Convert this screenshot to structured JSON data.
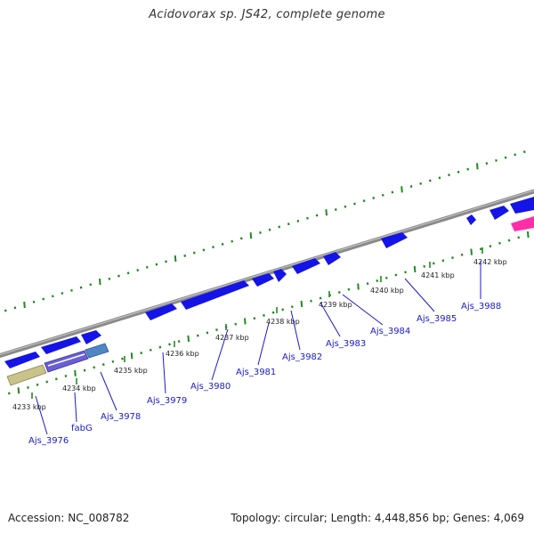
{
  "title": "Acidovorax sp. JS42, complete genome",
  "footer": {
    "accession": "Accession: NC_008782",
    "topology": "Topology: circular; Length: 4,448,856 bp; Genes: 4,069"
  },
  "kbp_labels": [
    "4233 kbp",
    "4234 kbp",
    "4235 kbp",
    "4236 kbp",
    "4237 kbp",
    "4238 kbp",
    "4239 kbp",
    "4240 kbp",
    "4241 kbp",
    "4242 kbp"
  ],
  "gene_labels": [
    "Ajs_3976",
    "fabG",
    "Ajs_3978",
    "Ajs_3979",
    "Ajs_3980",
    "Ajs_3981",
    "Ajs_3982",
    "Ajs_3983",
    "Ajs_3984",
    "Ajs_3985",
    "Ajs_3988"
  ],
  "colors": {
    "backbone": "#8a8a8a",
    "tick": "#1f8a1f",
    "gene_cds": "#1414e6",
    "gene_pink": "#ff2fa8",
    "gene_olive": "#c9c38a",
    "gene_purple": "#6a5ed6",
    "gene_steel": "#4f86c6",
    "label_text": "#1a1acc"
  }
}
